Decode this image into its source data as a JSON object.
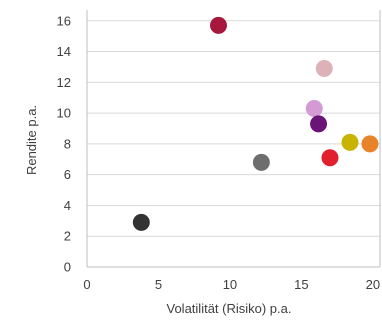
{
  "chart_data": {
    "type": "scatter",
    "title": "",
    "xlabel": "Volatilität (Risiko) p.a.",
    "ylabel": "Rendite p.a.",
    "xlim": [
      0,
      20.5
    ],
    "ylim": [
      0,
      16.7
    ],
    "xticks": [
      0,
      5,
      10,
      15,
      20
    ],
    "yticks": [
      0,
      2,
      4,
      6,
      8,
      10,
      12,
      14,
      16
    ],
    "grid": "horizontal",
    "legend": "none",
    "points": [
      {
        "x": 3.8,
        "y": 2.9,
        "color": "#333333"
      },
      {
        "x": 9.2,
        "y": 15.7,
        "color": "#a6193c"
      },
      {
        "x": 12.2,
        "y": 6.8,
        "color": "#6d6d6d"
      },
      {
        "x": 15.9,
        "y": 10.3,
        "color": "#d49ad4"
      },
      {
        "x": 16.2,
        "y": 9.3,
        "color": "#6b1478"
      },
      {
        "x": 16.6,
        "y": 12.9,
        "color": "#ddb2b6"
      },
      {
        "x": 17.0,
        "y": 7.1,
        "color": "#e0202c"
      },
      {
        "x": 18.4,
        "y": 8.1,
        "color": "#c8b400"
      },
      {
        "x": 19.8,
        "y": 8.0,
        "color": "#e8832a"
      }
    ]
  }
}
